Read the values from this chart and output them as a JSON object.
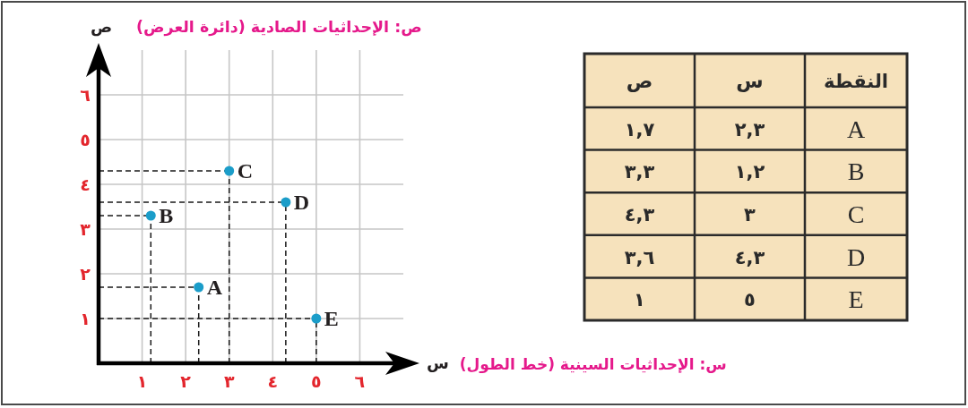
{
  "chart_data": [
    {
      "type": "scatter",
      "xlabel": "س: الإحداثيات السينية (خط الطول)",
      "ylabel": "ص: الإحداثيات الصادية (دائرة العرض)",
      "x": [
        2.3,
        1.2,
        3,
        4.3,
        5
      ],
      "series": [
        {
          "color": "#1b9dc9",
          "values": [
            1.7,
            3.3,
            4.3,
            3.6,
            1
          ]
        }
      ],
      "xlim": [
        0,
        7
      ],
      "ylim": [
        0,
        7
      ],
      "xticks": [
        {
          "value": 1,
          "label": "١"
        },
        {
          "value": 2,
          "label": "٢"
        },
        {
          "value": 3,
          "label": "٣"
        },
        {
          "value": 4,
          "label": "٤"
        },
        {
          "value": 5,
          "label": "٥"
        },
        {
          "value": 6,
          "label": "٦"
        }
      ],
      "yticks": [
        {
          "value": 1,
          "label": "١"
        },
        {
          "value": 2,
          "label": "٢"
        },
        {
          "value": 3,
          "label": "٣"
        },
        {
          "value": 4,
          "label": "٤"
        },
        {
          "value": 5,
          "label": "٥"
        },
        {
          "value": 6,
          "label": "٦"
        }
      ],
      "grid": true,
      "marker": "circle",
      "line_style": "dashed",
      "annotations": [
        {
          "text": "A",
          "x": 2.3,
          "y": 1.7
        },
        {
          "text": "B",
          "x": 1.2,
          "y": 3.3
        },
        {
          "text": "C",
          "x": 3,
          "y": 4.3
        },
        {
          "text": "D",
          "x": 4.3,
          "y": 3.6
        },
        {
          "text": "E",
          "x": 5,
          "y": 1
        },
        "س",
        "ص"
      ]
    },
    {
      "type": "other",
      "categories": [
        "ص",
        "س"
      ],
      "ylabel": "النقطة",
      "y_categories": [
        "A",
        "B",
        "C",
        "D",
        "E"
      ],
      "color": "#f6e2bc",
      "cell_labels": [
        [
          "١,٧",
          "٢,٣"
        ],
        [
          "٣,٣",
          "١,٢"
        ],
        [
          "٤,٣",
          "٣"
        ],
        [
          "٣,٦",
          "٤,٣"
        ],
        [
          "١",
          "٥"
        ]
      ]
    }
  ]
}
